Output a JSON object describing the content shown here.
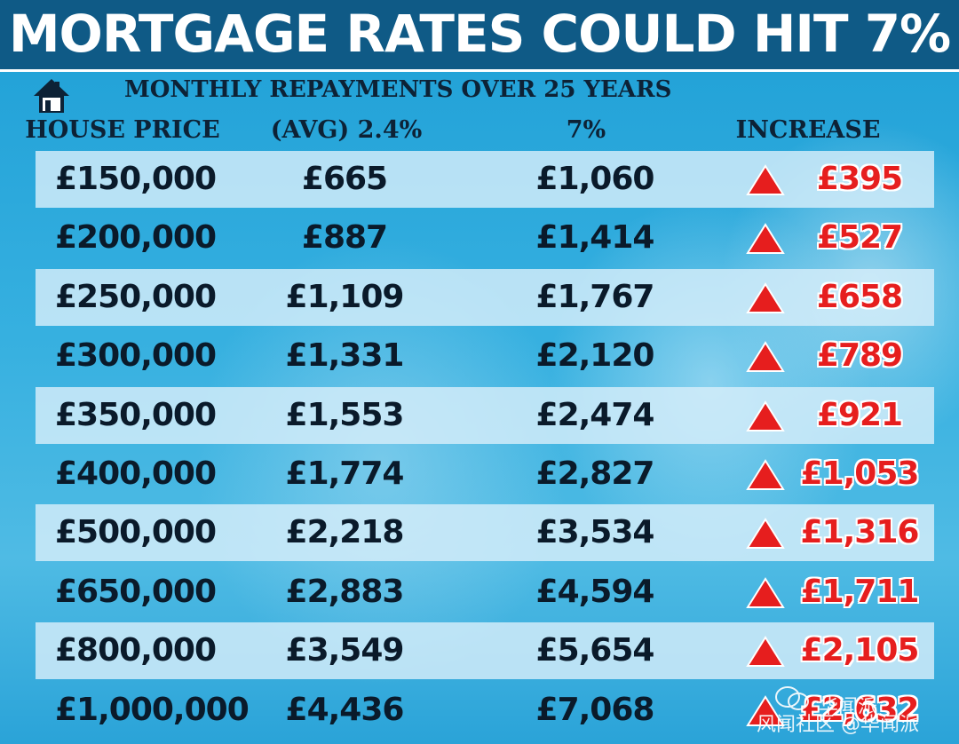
{
  "header": {
    "title": "MORTGAGE RATES COULD HIT 7%",
    "subtitle": "MONTHLY REPAYMENTS OVER 25 YEARS",
    "icon": "house-icon"
  },
  "columns": {
    "price": "HOUSE PRICE",
    "avg": "(AVG) 2.4%",
    "seven": "7%",
    "increase": "INCREASE"
  },
  "colors": {
    "title_bar": "#0f5a86",
    "increase_text": "#e61e1e",
    "arrow": "#e61e1e",
    "text": "#0a1a2a",
    "row_shade": "#d7eefa"
  },
  "watermark": {
    "line1": "华闻派",
    "line2": "风闻社区 @华闻派"
  },
  "chart_data": {
    "type": "table",
    "title": "MORTGAGE RATES COULD HIT 7%",
    "subtitle": "MONTHLY REPAYMENTS OVER 25 YEARS",
    "columns": [
      "HOUSE PRICE",
      "(AVG) 2.4%",
      "7%",
      "INCREASE"
    ],
    "rows": [
      {
        "price": "£150,000",
        "avg": "£665",
        "seven": "£1,060",
        "increase": "£395"
      },
      {
        "price": "£200,000",
        "avg": "£887",
        "seven": "£1,414",
        "increase": "£527"
      },
      {
        "price": "£250,000",
        "avg": "£1,109",
        "seven": "£1,767",
        "increase": "£658"
      },
      {
        "price": "£300,000",
        "avg": "£1,331",
        "seven": "£2,120",
        "increase": "£789"
      },
      {
        "price": "£350,000",
        "avg": "£1,553",
        "seven": "£2,474",
        "increase": "£921"
      },
      {
        "price": "£400,000",
        "avg": "£1,774",
        "seven": "£2,827",
        "increase": "£1,053"
      },
      {
        "price": "£500,000",
        "avg": "£2,218",
        "seven": "£3,534",
        "increase": "£1,316"
      },
      {
        "price": "£650,000",
        "avg": "£2,883",
        "seven": "£4,594",
        "increase": "£1,711"
      },
      {
        "price": "£800,000",
        "avg": "£3,549",
        "seven": "£5,654",
        "increase": "£2,105"
      },
      {
        "price": "£1,000,000",
        "avg": "£4,436",
        "seven": "£7,068",
        "increase": "£2,632"
      }
    ]
  }
}
